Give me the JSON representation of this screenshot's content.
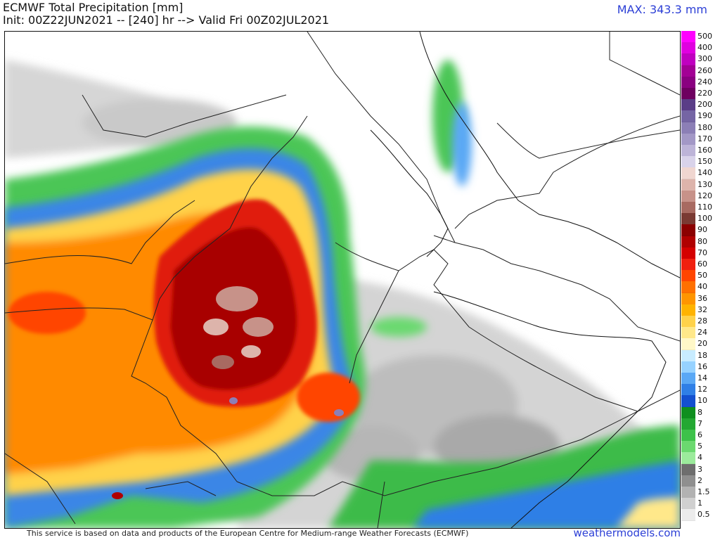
{
  "header": {
    "title": "ECMWF Total Precipitation [mm]",
    "init_line": "Init: 00Z22JUN2021 -- [240] hr --> Valid Fri 00Z02JUL2021",
    "max_label": "MAX: 343.3 mm"
  },
  "legend": {
    "items": [
      {
        "label": "500",
        "color": "#ff00ff"
      },
      {
        "label": "400",
        "color": "#e000e0"
      },
      {
        "label": "300",
        "color": "#c000c0"
      },
      {
        "label": "260",
        "color": "#a30095"
      },
      {
        "label": "240",
        "color": "#8a0080"
      },
      {
        "label": "220",
        "color": "#6e0060"
      },
      {
        "label": "200",
        "color": "#5a3d87"
      },
      {
        "label": "190",
        "color": "#7565a4"
      },
      {
        "label": "180",
        "color": "#8c7fb6"
      },
      {
        "label": "170",
        "color": "#a398c6"
      },
      {
        "label": "160",
        "color": "#bdb4d8"
      },
      {
        "label": "150",
        "color": "#d9d3ea"
      },
      {
        "label": "140",
        "color": "#f0d6d0"
      },
      {
        "label": "130",
        "color": "#ddb4ab"
      },
      {
        "label": "120",
        "color": "#c79289"
      },
      {
        "label": "110",
        "color": "#a86a61"
      },
      {
        "label": "100",
        "color": "#7a3a33"
      },
      {
        "label": "90",
        "color": "#8b0000"
      },
      {
        "label": "80",
        "color": "#b00000"
      },
      {
        "label": "70",
        "color": "#d40000"
      },
      {
        "label": "60",
        "color": "#f02010"
      },
      {
        "label": "50",
        "color": "#ff4500"
      },
      {
        "label": "40",
        "color": "#ff7000"
      },
      {
        "label": "36",
        "color": "#ff9500"
      },
      {
        "label": "32",
        "color": "#ffb300"
      },
      {
        "label": "28",
        "color": "#ffd24a"
      },
      {
        "label": "24",
        "color": "#ffe88a"
      },
      {
        "label": "20",
        "color": "#fff8c8"
      },
      {
        "label": "18",
        "color": "#c8ecff"
      },
      {
        "label": "16",
        "color": "#96d2ff"
      },
      {
        "label": "14",
        "color": "#5aa8f5"
      },
      {
        "label": "12",
        "color": "#2f7fe6"
      },
      {
        "label": "10",
        "color": "#1450d0"
      },
      {
        "label": "8",
        "color": "#0f8f1f"
      },
      {
        "label": "7",
        "color": "#23a832"
      },
      {
        "label": "6",
        "color": "#3dc24a"
      },
      {
        "label": "5",
        "color": "#6bd96f"
      },
      {
        "label": "4",
        "color": "#9ceb9c"
      },
      {
        "label": "3",
        "color": "#6e6e6e"
      },
      {
        "label": "2",
        "color": "#8f8f8f"
      },
      {
        "label": "1.5",
        "color": "#b2b2b2"
      },
      {
        "label": "1",
        "color": "#d0d0d0"
      },
      {
        "label": "0.5",
        "color": "#ececec"
      }
    ]
  },
  "footer": {
    "credit": "This service is based on data and products of the European Centre for Medium-range Weather Forecasts (ECMWF)",
    "brand": "weathermodels.com"
  }
}
